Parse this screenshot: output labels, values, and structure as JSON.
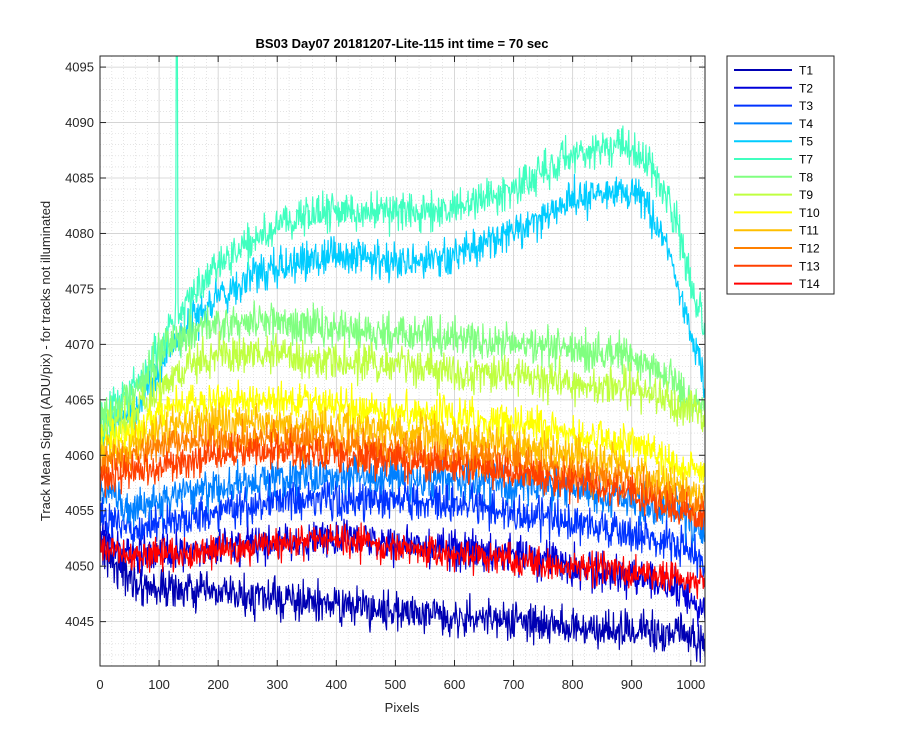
{
  "chart_data": {
    "type": "line",
    "title": "BS03 Day07 20181207-Lite-115 int time = 70 sec",
    "xlabel": "Pixels",
    "ylabel": "Track Mean Signal (ADU/pix) - for tracks not illuminated",
    "xlim": [
      0,
      1024
    ],
    "ylim": [
      4041,
      4096
    ],
    "xticks": [
      "0",
      "100",
      "200",
      "300",
      "400",
      "500",
      "600",
      "700",
      "800",
      "900",
      "1000"
    ],
    "yticks": [
      "4045",
      "4050",
      "4055",
      "4060",
      "4065",
      "4070",
      "4075",
      "4080",
      "4085",
      "4090",
      "4095"
    ],
    "grid": true,
    "minor_grid": true,
    "legend_position": "outside-right-top",
    "series": [
      {
        "name": "T1",
        "color": "#0000b3",
        "noise": 1.5,
        "profile": [
          [
            0,
            4052
          ],
          [
            30,
            4050
          ],
          [
            60,
            4048.5
          ],
          [
            100,
            4048
          ],
          [
            200,
            4047.5
          ],
          [
            300,
            4047
          ],
          [
            400,
            4046.5
          ],
          [
            500,
            4046
          ],
          [
            600,
            4045.5
          ],
          [
            700,
            4045
          ],
          [
            800,
            4044.5
          ],
          [
            900,
            4044
          ],
          [
            980,
            4044
          ],
          [
            1024,
            4043
          ]
        ]
      },
      {
        "name": "T2",
        "color": "#0000d9",
        "noise": 1.5,
        "profile": [
          [
            0,
            4053
          ],
          [
            50,
            4051
          ],
          [
            100,
            4051
          ],
          [
            200,
            4051.5
          ],
          [
            300,
            4052
          ],
          [
            400,
            4052.5
          ],
          [
            500,
            4052
          ],
          [
            600,
            4051.5
          ],
          [
            700,
            4051
          ],
          [
            800,
            4050
          ],
          [
            900,
            4049
          ],
          [
            980,
            4048
          ],
          [
            1024,
            4046
          ]
        ]
      },
      {
        "name": "T3",
        "color": "#0033ff",
        "noise": 1.5,
        "profile": [
          [
            0,
            4055
          ],
          [
            50,
            4053
          ],
          [
            100,
            4054
          ],
          [
            200,
            4055
          ],
          [
            300,
            4056
          ],
          [
            400,
            4056
          ],
          [
            500,
            4056
          ],
          [
            600,
            4055.5
          ],
          [
            700,
            4055
          ],
          [
            800,
            4054
          ],
          [
            900,
            4053
          ],
          [
            980,
            4052
          ],
          [
            1024,
            4050
          ]
        ]
      },
      {
        "name": "T4",
        "color": "#0080ff",
        "noise": 1.5,
        "profile": [
          [
            0,
            4057
          ],
          [
            50,
            4055
          ],
          [
            100,
            4056
          ],
          [
            200,
            4057
          ],
          [
            300,
            4058
          ],
          [
            400,
            4058.5
          ],
          [
            500,
            4058
          ],
          [
            600,
            4058
          ],
          [
            700,
            4057.5
          ],
          [
            800,
            4057
          ],
          [
            900,
            4056
          ],
          [
            980,
            4055
          ],
          [
            1024,
            4053
          ]
        ]
      },
      {
        "name": "T5",
        "color": "#00ccff",
        "noise": 1.5,
        "profile": [
          [
            0,
            4062
          ],
          [
            60,
            4064
          ],
          [
            100,
            4068
          ],
          [
            150,
            4072
          ],
          [
            200,
            4074
          ],
          [
            250,
            4076
          ],
          [
            300,
            4077
          ],
          [
            400,
            4078
          ],
          [
            500,
            4077.5
          ],
          [
            600,
            4078
          ],
          [
            700,
            4080
          ],
          [
            800,
            4083
          ],
          [
            870,
            4084
          ],
          [
            920,
            4083
          ],
          [
            960,
            4079
          ],
          [
            990,
            4073
          ],
          [
            1010,
            4069
          ],
          [
            1024,
            4066
          ]
        ]
      },
      {
        "name": "T7",
        "color": "#40ffbf",
        "noise": 1.5,
        "spike": [
          130,
          4096
        ],
        "profile": [
          [
            0,
            4063
          ],
          [
            60,
            4066
          ],
          [
            100,
            4070
          ],
          [
            150,
            4074
          ],
          [
            200,
            4077
          ],
          [
            250,
            4079
          ],
          [
            300,
            4081
          ],
          [
            400,
            4082
          ],
          [
            500,
            4082
          ],
          [
            600,
            4082
          ],
          [
            700,
            4084
          ],
          [
            800,
            4087
          ],
          [
            880,
            4088
          ],
          [
            930,
            4086
          ],
          [
            970,
            4082
          ],
          [
            1000,
            4076
          ],
          [
            1024,
            4071
          ]
        ]
      },
      {
        "name": "T8",
        "color": "#80ff80",
        "noise": 1.5,
        "profile": [
          [
            0,
            4063
          ],
          [
            60,
            4066
          ],
          [
            100,
            4069
          ],
          [
            150,
            4071
          ],
          [
            200,
            4072
          ],
          [
            300,
            4072
          ],
          [
            400,
            4071.5
          ],
          [
            500,
            4071
          ],
          [
            600,
            4070.5
          ],
          [
            700,
            4070
          ],
          [
            800,
            4069.5
          ],
          [
            900,
            4069
          ],
          [
            960,
            4067
          ],
          [
            1000,
            4065
          ],
          [
            1024,
            4064
          ]
        ]
      },
      {
        "name": "T9",
        "color": "#bfff40",
        "noise": 1.5,
        "profile": [
          [
            0,
            4062
          ],
          [
            60,
            4064
          ],
          [
            100,
            4066
          ],
          [
            150,
            4068
          ],
          [
            200,
            4069
          ],
          [
            300,
            4069
          ],
          [
            400,
            4068.5
          ],
          [
            500,
            4068
          ],
          [
            600,
            4067.5
          ],
          [
            700,
            4067
          ],
          [
            800,
            4066.5
          ],
          [
            900,
            4066
          ],
          [
            960,
            4065
          ],
          [
            1000,
            4064
          ],
          [
            1024,
            4063
          ]
        ]
      },
      {
        "name": "T10",
        "color": "#ffff00",
        "noise": 1.4,
        "profile": [
          [
            0,
            4061
          ],
          [
            60,
            4062
          ],
          [
            100,
            4064
          ],
          [
            200,
            4065
          ],
          [
            300,
            4065
          ],
          [
            400,
            4064.5
          ],
          [
            500,
            4064
          ],
          [
            600,
            4063.5
          ],
          [
            700,
            4063
          ],
          [
            800,
            4062
          ],
          [
            900,
            4061
          ],
          [
            980,
            4059
          ],
          [
            1024,
            4058
          ]
        ]
      },
      {
        "name": "T11",
        "color": "#ffbf00",
        "noise": 1.4,
        "profile": [
          [
            0,
            4060
          ],
          [
            60,
            4061
          ],
          [
            100,
            4062.5
          ],
          [
            200,
            4063
          ],
          [
            300,
            4063
          ],
          [
            400,
            4062.5
          ],
          [
            500,
            4062
          ],
          [
            600,
            4061.5
          ],
          [
            700,
            4061
          ],
          [
            800,
            4060
          ],
          [
            900,
            4059
          ],
          [
            980,
            4057
          ],
          [
            1024,
            4056
          ]
        ]
      },
      {
        "name": "T12",
        "color": "#ff8000",
        "noise": 1.4,
        "profile": [
          [
            0,
            4059
          ],
          [
            60,
            4060
          ],
          [
            100,
            4061
          ],
          [
            200,
            4061.5
          ],
          [
            300,
            4061.5
          ],
          [
            400,
            4061
          ],
          [
            500,
            4060.5
          ],
          [
            600,
            4060
          ],
          [
            700,
            4059.5
          ],
          [
            800,
            4058.5
          ],
          [
            900,
            4057.5
          ],
          [
            980,
            4056
          ],
          [
            1024,
            4055
          ]
        ]
      },
      {
        "name": "T13",
        "color": "#ff4000",
        "noise": 1.3,
        "profile": [
          [
            0,
            4058
          ],
          [
            60,
            4058.5
          ],
          [
            100,
            4059
          ],
          [
            200,
            4060
          ],
          [
            300,
            4060.5
          ],
          [
            400,
            4060
          ],
          [
            500,
            4059.5
          ],
          [
            600,
            4059
          ],
          [
            700,
            4058.5
          ],
          [
            800,
            4057.5
          ],
          [
            900,
            4056.5
          ],
          [
            980,
            4055
          ],
          [
            1024,
            4054
          ]
        ]
      },
      {
        "name": "T14",
        "color": "#ff0000",
        "noise": 1.2,
        "profile": [
          [
            0,
            4052
          ],
          [
            50,
            4051
          ],
          [
            100,
            4051
          ],
          [
            200,
            4051.5
          ],
          [
            300,
            4052
          ],
          [
            400,
            4052.5
          ],
          [
            500,
            4051.5
          ],
          [
            600,
            4051
          ],
          [
            700,
            4050.5
          ],
          [
            800,
            4050
          ],
          [
            900,
            4049.5
          ],
          [
            980,
            4049
          ],
          [
            1024,
            4048.5
          ]
        ]
      }
    ]
  }
}
